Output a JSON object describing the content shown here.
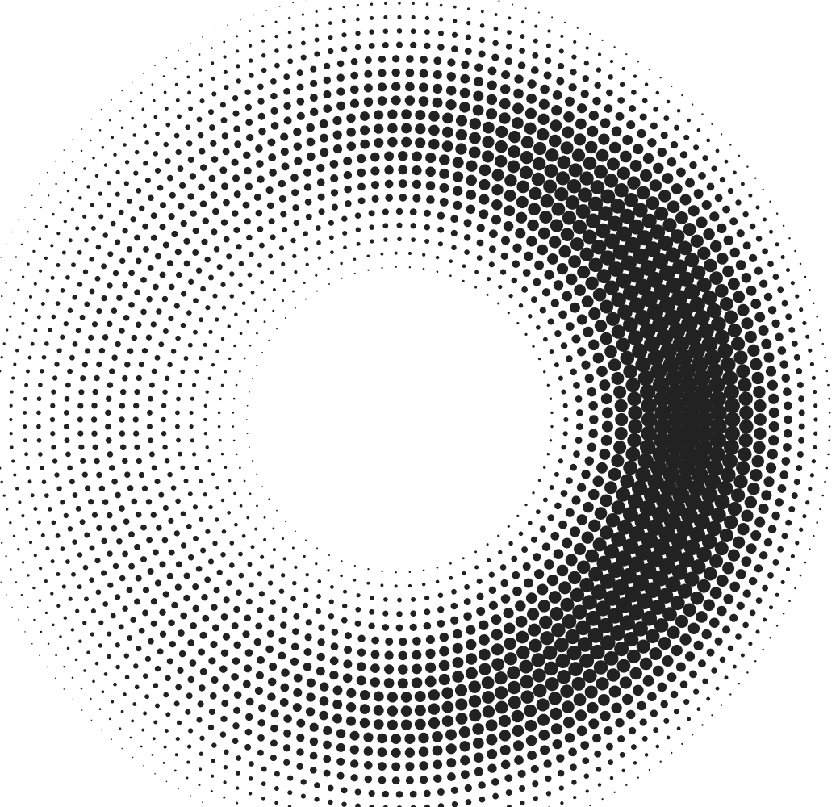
{
  "pattern": {
    "type": "halftone-radial-dot-ring",
    "dot_color": "#222222",
    "background_color": "#ffffff"
  }
}
